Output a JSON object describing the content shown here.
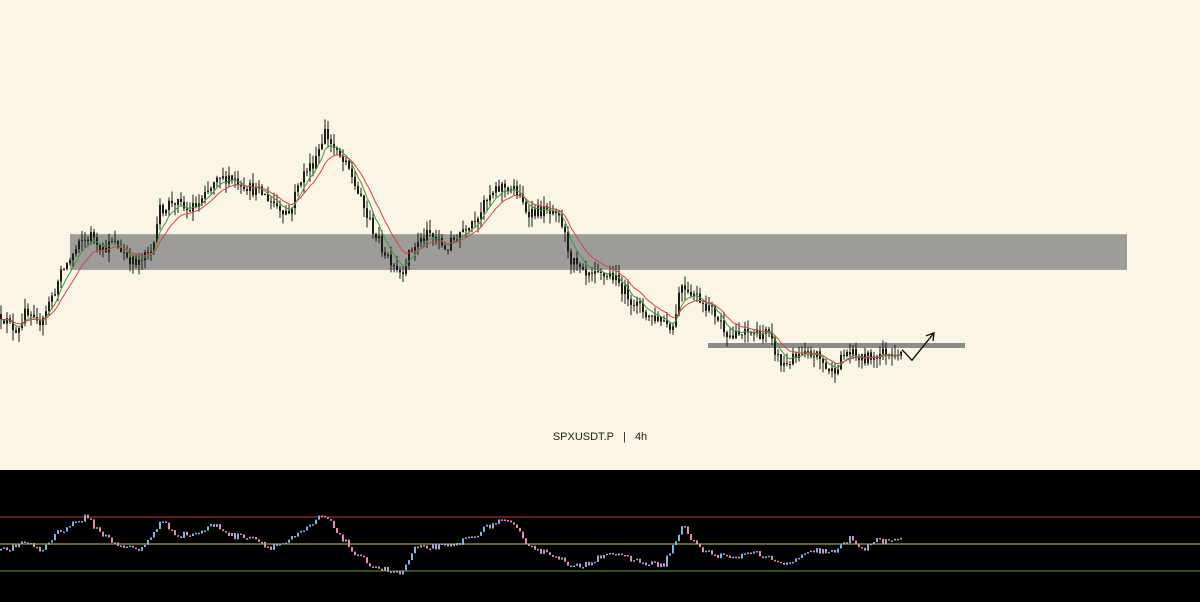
{
  "chart_data": {
    "type": "candlestick",
    "symbol": "SPXUSDT.P",
    "separator": "|",
    "timeframe": "4h",
    "colors": {
      "background": "#faf5e4",
      "candle": "#1c1c1c",
      "ema_fast": "#3f9a3f",
      "ema_slow": "#d04646",
      "zone": "#8c8c8c",
      "oscillator_bg": "#000000",
      "osc_up": "#7fb2e5",
      "osc_down": "#e58ab0",
      "osc_upper_line": "#c0392b",
      "osc_mid_line": "#c8c85a",
      "osc_lower_line": "#5a9a3a"
    },
    "price_path": [
      [
        0,
        0.3
      ],
      [
        10,
        0.27
      ],
      [
        16,
        0.265
      ],
      [
        24,
        0.3
      ],
      [
        36,
        0.272
      ],
      [
        50,
        0.335
      ],
      [
        62,
        0.405
      ],
      [
        80,
        0.47
      ],
      [
        92,
        0.49
      ],
      [
        102,
        0.455
      ],
      [
        112,
        0.47
      ],
      [
        122,
        0.45
      ],
      [
        136,
        0.415
      ],
      [
        150,
        0.45
      ],
      [
        158,
        0.545
      ],
      [
        172,
        0.57
      ],
      [
        186,
        0.545
      ],
      [
        200,
        0.565
      ],
      [
        214,
        0.61
      ],
      [
        228,
        0.63
      ],
      [
        246,
        0.605
      ],
      [
        262,
        0.585
      ],
      [
        276,
        0.56
      ],
      [
        288,
        0.54
      ],
      [
        300,
        0.625
      ],
      [
        312,
        0.66
      ],
      [
        324,
        0.735
      ],
      [
        336,
        0.68
      ],
      [
        350,
        0.635
      ],
      [
        362,
        0.555
      ],
      [
        380,
        0.46
      ],
      [
        400,
        0.4
      ],
      [
        412,
        0.46
      ],
      [
        428,
        0.49
      ],
      [
        446,
        0.455
      ],
      [
        460,
        0.5
      ],
      [
        476,
        0.535
      ],
      [
        490,
        0.58
      ],
      [
        502,
        0.605
      ],
      [
        514,
        0.595
      ],
      [
        526,
        0.545
      ],
      [
        544,
        0.545
      ],
      [
        560,
        0.52
      ],
      [
        570,
        0.43
      ],
      [
        584,
        0.385
      ],
      [
        598,
        0.39
      ],
      [
        610,
        0.395
      ],
      [
        620,
        0.365
      ],
      [
        634,
        0.325
      ],
      [
        648,
        0.295
      ],
      [
        660,
        0.29
      ],
      [
        672,
        0.27
      ],
      [
        680,
        0.375
      ],
      [
        690,
        0.355
      ],
      [
        700,
        0.335
      ],
      [
        714,
        0.3
      ],
      [
        730,
        0.245
      ],
      [
        750,
        0.255
      ],
      [
        766,
        0.255
      ],
      [
        780,
        0.18
      ],
      [
        796,
        0.195
      ],
      [
        814,
        0.205
      ],
      [
        830,
        0.16
      ],
      [
        846,
        0.21
      ],
      [
        862,
        0.19
      ],
      [
        876,
        0.205
      ],
      [
        890,
        0.21
      ],
      [
        902,
        0.215
      ]
    ],
    "resistance_zone": {
      "x_start": 70,
      "x_end": 1127,
      "y_low": 0.405,
      "y_high": 0.49
    },
    "support_line": {
      "x_start": 708,
      "x_end": 965,
      "y": 0.225
    },
    "projection": [
      [
        902,
        0.215
      ],
      [
        912,
        0.19
      ],
      [
        934,
        0.255
      ]
    ],
    "oscillator": {
      "upper": 0.75,
      "middle": 0.5,
      "lower": 0.25,
      "path": [
        [
          0,
          0.44
        ],
        [
          14,
          0.47
        ],
        [
          28,
          0.52
        ],
        [
          40,
          0.43
        ],
        [
          55,
          0.6
        ],
        [
          70,
          0.68
        ],
        [
          85,
          0.75
        ],
        [
          98,
          0.62
        ],
        [
          112,
          0.52
        ],
        [
          126,
          0.47
        ],
        [
          140,
          0.44
        ],
        [
          160,
          0.71
        ],
        [
          178,
          0.58
        ],
        [
          196,
          0.6
        ],
        [
          214,
          0.68
        ],
        [
          232,
          0.57
        ],
        [
          250,
          0.58
        ],
        [
          268,
          0.47
        ],
        [
          286,
          0.52
        ],
        [
          302,
          0.61
        ],
        [
          322,
          0.77
        ],
        [
          338,
          0.6
        ],
        [
          356,
          0.38
        ],
        [
          378,
          0.28
        ],
        [
          400,
          0.22
        ],
        [
          414,
          0.45
        ],
        [
          432,
          0.48
        ],
        [
          450,
          0.47
        ],
        [
          468,
          0.56
        ],
        [
          484,
          0.64
        ],
        [
          498,
          0.72
        ],
        [
          512,
          0.67
        ],
        [
          524,
          0.53
        ],
        [
          540,
          0.43
        ],
        [
          556,
          0.4
        ],
        [
          570,
          0.27
        ],
        [
          588,
          0.33
        ],
        [
          606,
          0.43
        ],
        [
          624,
          0.37
        ],
        [
          642,
          0.33
        ],
        [
          662,
          0.3
        ],
        [
          682,
          0.66
        ],
        [
          700,
          0.44
        ],
        [
          716,
          0.4
        ],
        [
          732,
          0.36
        ],
        [
          750,
          0.44
        ],
        [
          766,
          0.37
        ],
        [
          782,
          0.3
        ],
        [
          798,
          0.37
        ],
        [
          816,
          0.44
        ],
        [
          834,
          0.42
        ],
        [
          850,
          0.56
        ],
        [
          864,
          0.45
        ],
        [
          876,
          0.55
        ],
        [
          890,
          0.5
        ],
        [
          902,
          0.58
        ]
      ]
    }
  }
}
